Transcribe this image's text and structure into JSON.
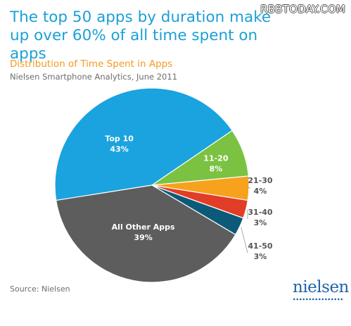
{
  "watermark": "RBBTODAY.COM",
  "headline": "The top 50 apps by duration make up over 60% of all time spent on apps",
  "subtitle": "Distribution of Time Spent in Apps",
  "source_line": "Nielsen Smartphone Analytics, June 2011",
  "footer_source": "Source: Nielsen",
  "logo_text": "nielsen",
  "colors": {
    "title": "#1b9fd7",
    "subtitle": "#f39a1f"
  },
  "chart_data": {
    "type": "pie",
    "title": "Distribution of Time Spent in Apps",
    "slices": [
      {
        "label": "Top 10",
        "value": 43,
        "value_label": "43%",
        "color": "#1aa3de"
      },
      {
        "label": "11-20",
        "value": 8,
        "value_label": "8%",
        "color": "#7cc242"
      },
      {
        "label": "21-30",
        "value": 4,
        "value_label": "4%",
        "color": "#f6a21d"
      },
      {
        "label": "31-40",
        "value": 3,
        "value_label": "3%",
        "color": "#e23d26"
      },
      {
        "label": "41-50",
        "value": 3,
        "value_label": "3%",
        "color": "#0b5b78"
      },
      {
        "label": "All Other Apps",
        "value": 39,
        "value_label": "39%",
        "color": "#5d5d5d"
      }
    ]
  }
}
